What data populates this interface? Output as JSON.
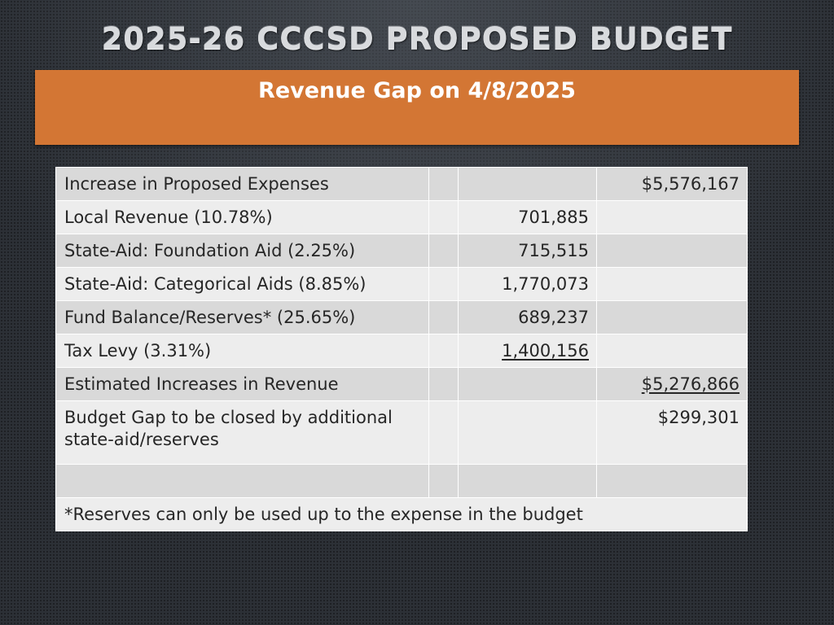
{
  "slide": {
    "title": "2025-26 CCCSD PROPOSED BUDGET",
    "subtitle": "Revenue Gap on 4/8/2025"
  },
  "table": {
    "rows": [
      {
        "label": "Increase in Proposed Expenses",
        "amount": "",
        "total": "$5,576,167"
      },
      {
        "label": "Local Revenue (10.78%)",
        "amount": "701,885",
        "total": ""
      },
      {
        "label": "State-Aid: Foundation Aid (2.25%)",
        "amount": "715,515",
        "total": ""
      },
      {
        "label": "State-Aid: Categorical Aids (8.85%)",
        "amount": "1,770,073",
        "total": ""
      },
      {
        "label": "Fund Balance/Reserves* (25.65%)",
        "amount": "689,237",
        "total": ""
      },
      {
        "label": "Tax Levy (3.31%)",
        "amount": "1,400,156",
        "total": ""
      },
      {
        "label": "Estimated Increases in Revenue",
        "amount": "",
        "total": "$5,276,866"
      },
      {
        "label": "Budget Gap to be closed by additional state-aid/reserves",
        "amount": "",
        "total": "$299,301"
      },
      {
        "label": "",
        "amount": "",
        "total": ""
      }
    ],
    "footnote": "*Reserves can only be used up to the expense in the budget"
  },
  "colors": {
    "banner": "#d37634",
    "row_dark": "#d9d9d9",
    "row_light": "#ededed",
    "background": "#2c3036"
  }
}
